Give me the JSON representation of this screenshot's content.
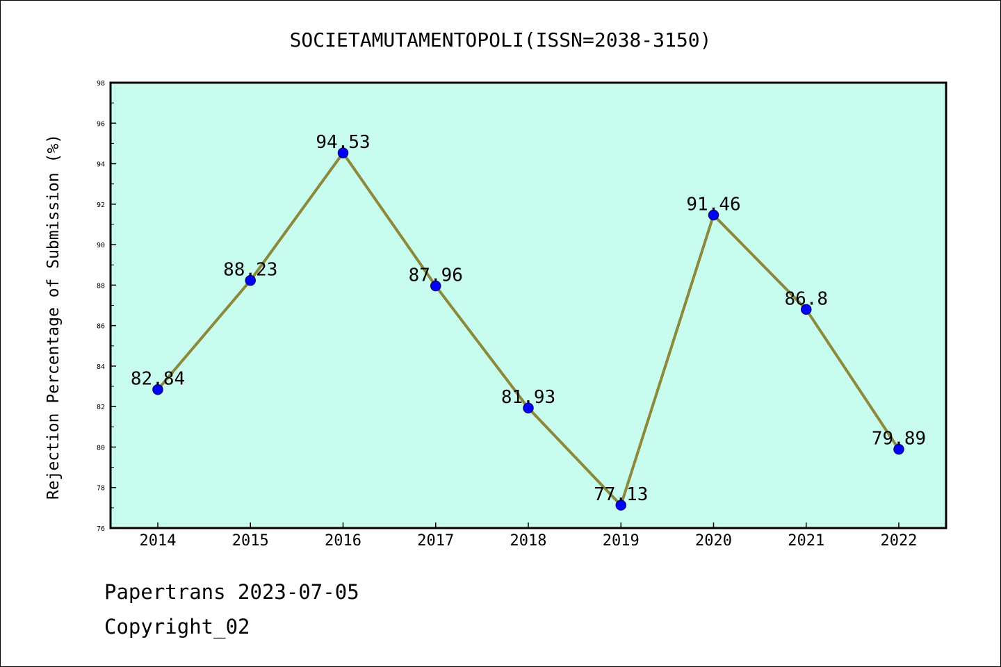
{
  "chart_data": {
    "type": "line",
    "title": "SOCIETAMUTAMENTOPOLI(ISSN=2038-3150)",
    "xlabel": "",
    "ylabel": "Rejection Percentage of Submission (%)",
    "categories": [
      "2014",
      "2015",
      "2016",
      "2017",
      "2018",
      "2019",
      "2020",
      "2021",
      "2022"
    ],
    "series": [
      {
        "values": [
          82.84,
          88.23,
          94.53,
          87.96,
          81.93,
          77.13,
          91.46,
          86.8,
          79.89
        ],
        "data_labels": [
          "82.84",
          "88.23",
          "94.53",
          "87.96",
          "81.93",
          "77.13",
          "91.46",
          "86.8",
          "79.89"
        ]
      }
    ],
    "ylim": [
      76,
      98
    ],
    "yticks": [
      "76",
      "78",
      "80",
      "82",
      "84",
      "86",
      "88",
      "90",
      "92",
      "94",
      "96",
      "98"
    ],
    "grid": false,
    "legend": "none",
    "colors": {
      "plot_background": "#c8fcee",
      "line": "#8b8a3a",
      "marker": "#0000ff",
      "marker_edge": "#00008b"
    }
  },
  "footer": {
    "line1": "Papertrans 2023-07-05",
    "line2": "Copyright_02"
  }
}
